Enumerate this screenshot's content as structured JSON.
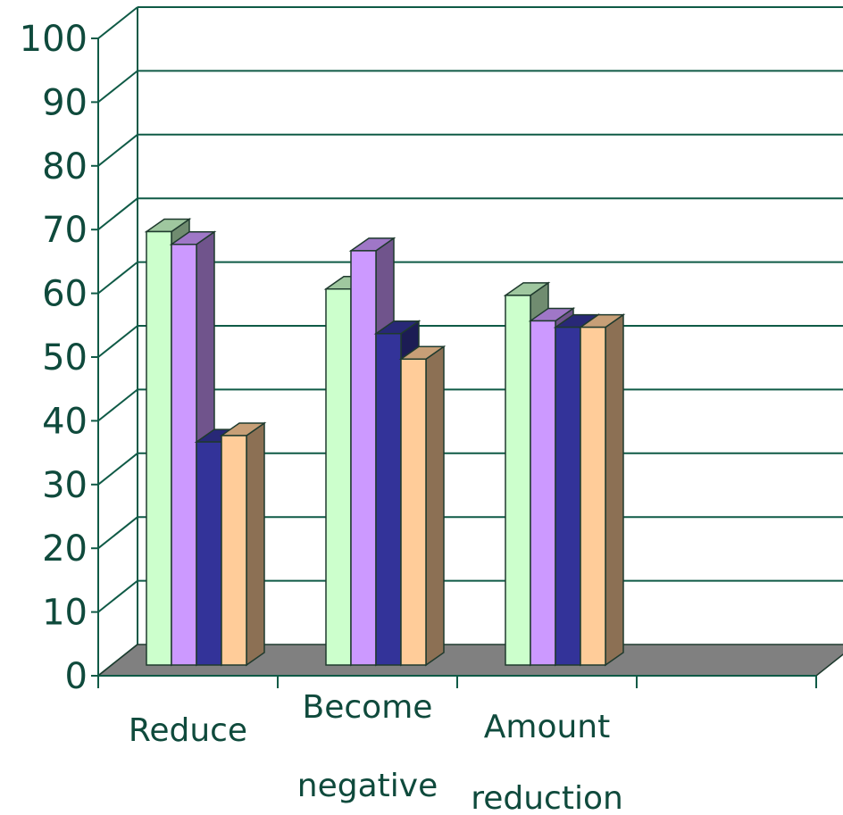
{
  "chart_data": {
    "type": "bar",
    "title": "",
    "xlabel": "",
    "ylabel": "",
    "categories": [
      [
        "Reduce"
      ],
      [
        "Become",
        "negative"
      ],
      [
        "Amount",
        "reduction"
      ],
      [
        ""
      ]
    ],
    "y_ticks": [
      "0",
      "10",
      "20",
      "30",
      "40",
      "50",
      "60",
      "70",
      "80",
      "90",
      "100"
    ],
    "ylim": [
      0,
      100
    ],
    "grid": true,
    "legend": "none",
    "three_d": true,
    "series": [
      {
        "color": "#ccffcc",
        "values": [
          68,
          59,
          58,
          null
        ]
      },
      {
        "color": "#cc99ff",
        "values": [
          66,
          65,
          54,
          null
        ]
      },
      {
        "color": "#333399",
        "values": [
          35,
          52,
          53,
          null
        ]
      },
      {
        "color": "#ffcc99",
        "values": [
          36,
          48,
          53,
          null
        ]
      }
    ],
    "floor_color": "#808080"
  }
}
